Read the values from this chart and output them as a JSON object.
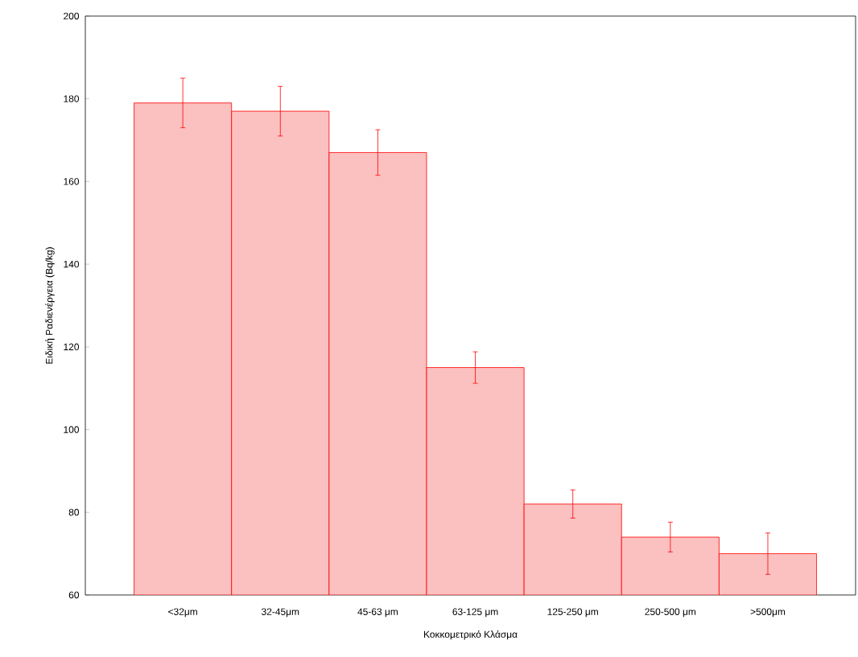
{
  "chart_data": {
    "type": "bar",
    "xlabel": "Κοκκομετρικό Κλάσμα",
    "ylabel": "Ειδική Ραδιενέργεια (Bq/kg)",
    "categories": [
      "<32μm",
      "32-45μm",
      "45-63 μm",
      "63-125 μm",
      "125-250 μm",
      "250-500 μm",
      ">500μm"
    ],
    "values": [
      179,
      177,
      167,
      115,
      82,
      74,
      70
    ],
    "errors": [
      6,
      6,
      5.5,
      3.8,
      3.4,
      3.6,
      5
    ],
    "color": "#fbc0c0",
    "ylim": [
      60,
      200
    ],
    "yticks": [
      60,
      80,
      100,
      120,
      140,
      160,
      180,
      200
    ],
    "grid": false
  }
}
